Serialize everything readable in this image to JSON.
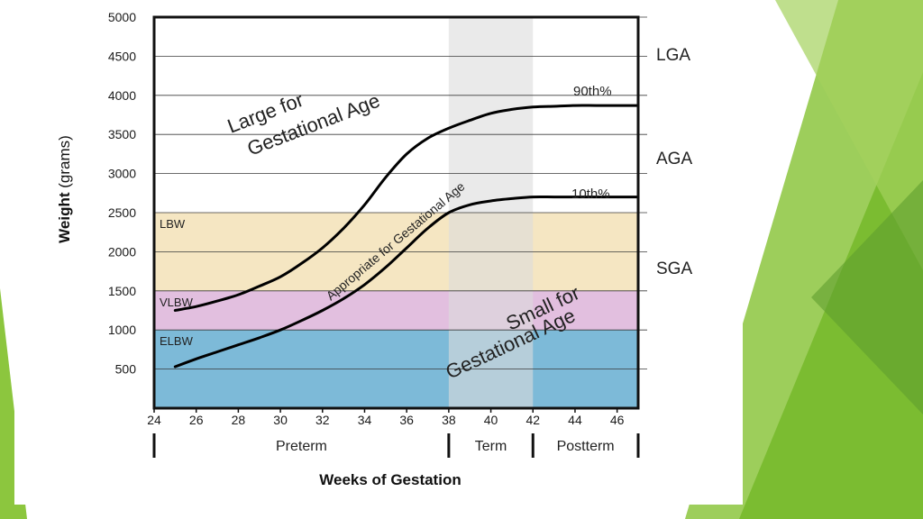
{
  "theme": {
    "slide_greens": [
      "#8cc63e",
      "#76b82a",
      "#a4d15c",
      "#5f9e2f"
    ],
    "band_lbw": "#f5e6c2",
    "band_vlbw": "#e2bfdf",
    "band_elbw": "#7dbad8",
    "term_shade": "#dcdcdc",
    "curve": "#000000"
  },
  "chart_data": {
    "type": "line",
    "title": "",
    "xlabel": "Weeks of Gestation",
    "ylabel": "Weight (grams)",
    "ylabel_bold": "Weight",
    "ylabel_rest": " (grams)",
    "xlim": [
      24,
      47
    ],
    "ylim": [
      0,
      5000
    ],
    "grid": true,
    "x_ticks": [
      24,
      26,
      28,
      30,
      32,
      34,
      36,
      38,
      40,
      42,
      44,
      46
    ],
    "y_ticks": [
      500,
      1000,
      1500,
      2000,
      2500,
      3000,
      3500,
      4000,
      4500,
      5000
    ],
    "series": [
      {
        "name": "90th%",
        "x": [
          25,
          26,
          27,
          28,
          29,
          30,
          31,
          32,
          33,
          34,
          35,
          36,
          37,
          38,
          39,
          40,
          41,
          42,
          43,
          44,
          45,
          46,
          47
        ],
        "y": [
          1250,
          1300,
          1370,
          1450,
          1560,
          1680,
          1850,
          2050,
          2300,
          2600,
          2950,
          3250,
          3450,
          3580,
          3680,
          3770,
          3820,
          3850,
          3860,
          3870,
          3870,
          3870,
          3870
        ]
      },
      {
        "name": "10th%",
        "x": [
          25,
          26,
          27,
          28,
          29,
          30,
          31,
          32,
          33,
          34,
          35,
          36,
          37,
          38,
          39,
          40,
          41,
          42,
          43,
          44,
          45,
          46,
          47
        ],
        "y": [
          530,
          630,
          720,
          810,
          900,
          1000,
          1120,
          1250,
          1400,
          1580,
          1800,
          2050,
          2300,
          2500,
          2600,
          2650,
          2680,
          2700,
          2700,
          2700,
          2700,
          2700,
          2700
        ]
      }
    ],
    "bands": [
      {
        "label": "LBW",
        "from": 1500,
        "to": 2500
      },
      {
        "label": "VLBW",
        "from": 1000,
        "to": 1500
      },
      {
        "label": "ELBW",
        "from": 0,
        "to": 1000
      }
    ],
    "term_shade": {
      "from": 38,
      "to": 42
    },
    "right_labels": [
      "LGA",
      "AGA",
      "SGA"
    ],
    "curve_labels": [
      "90th%",
      "10th%"
    ],
    "region_labels": {
      "lga_line1": "Large for",
      "lga_line2": "Gestational Age",
      "aga": "Appropriate for Gestational Age",
      "sga_line1": "Small for",
      "sga_line2": "Gestational Age"
    },
    "periods": [
      {
        "label": "Preterm",
        "from": 24,
        "to": 38
      },
      {
        "label": "Term",
        "from": 38,
        "to": 42
      },
      {
        "label": "Postterm",
        "from": 42,
        "to": 47
      }
    ]
  }
}
